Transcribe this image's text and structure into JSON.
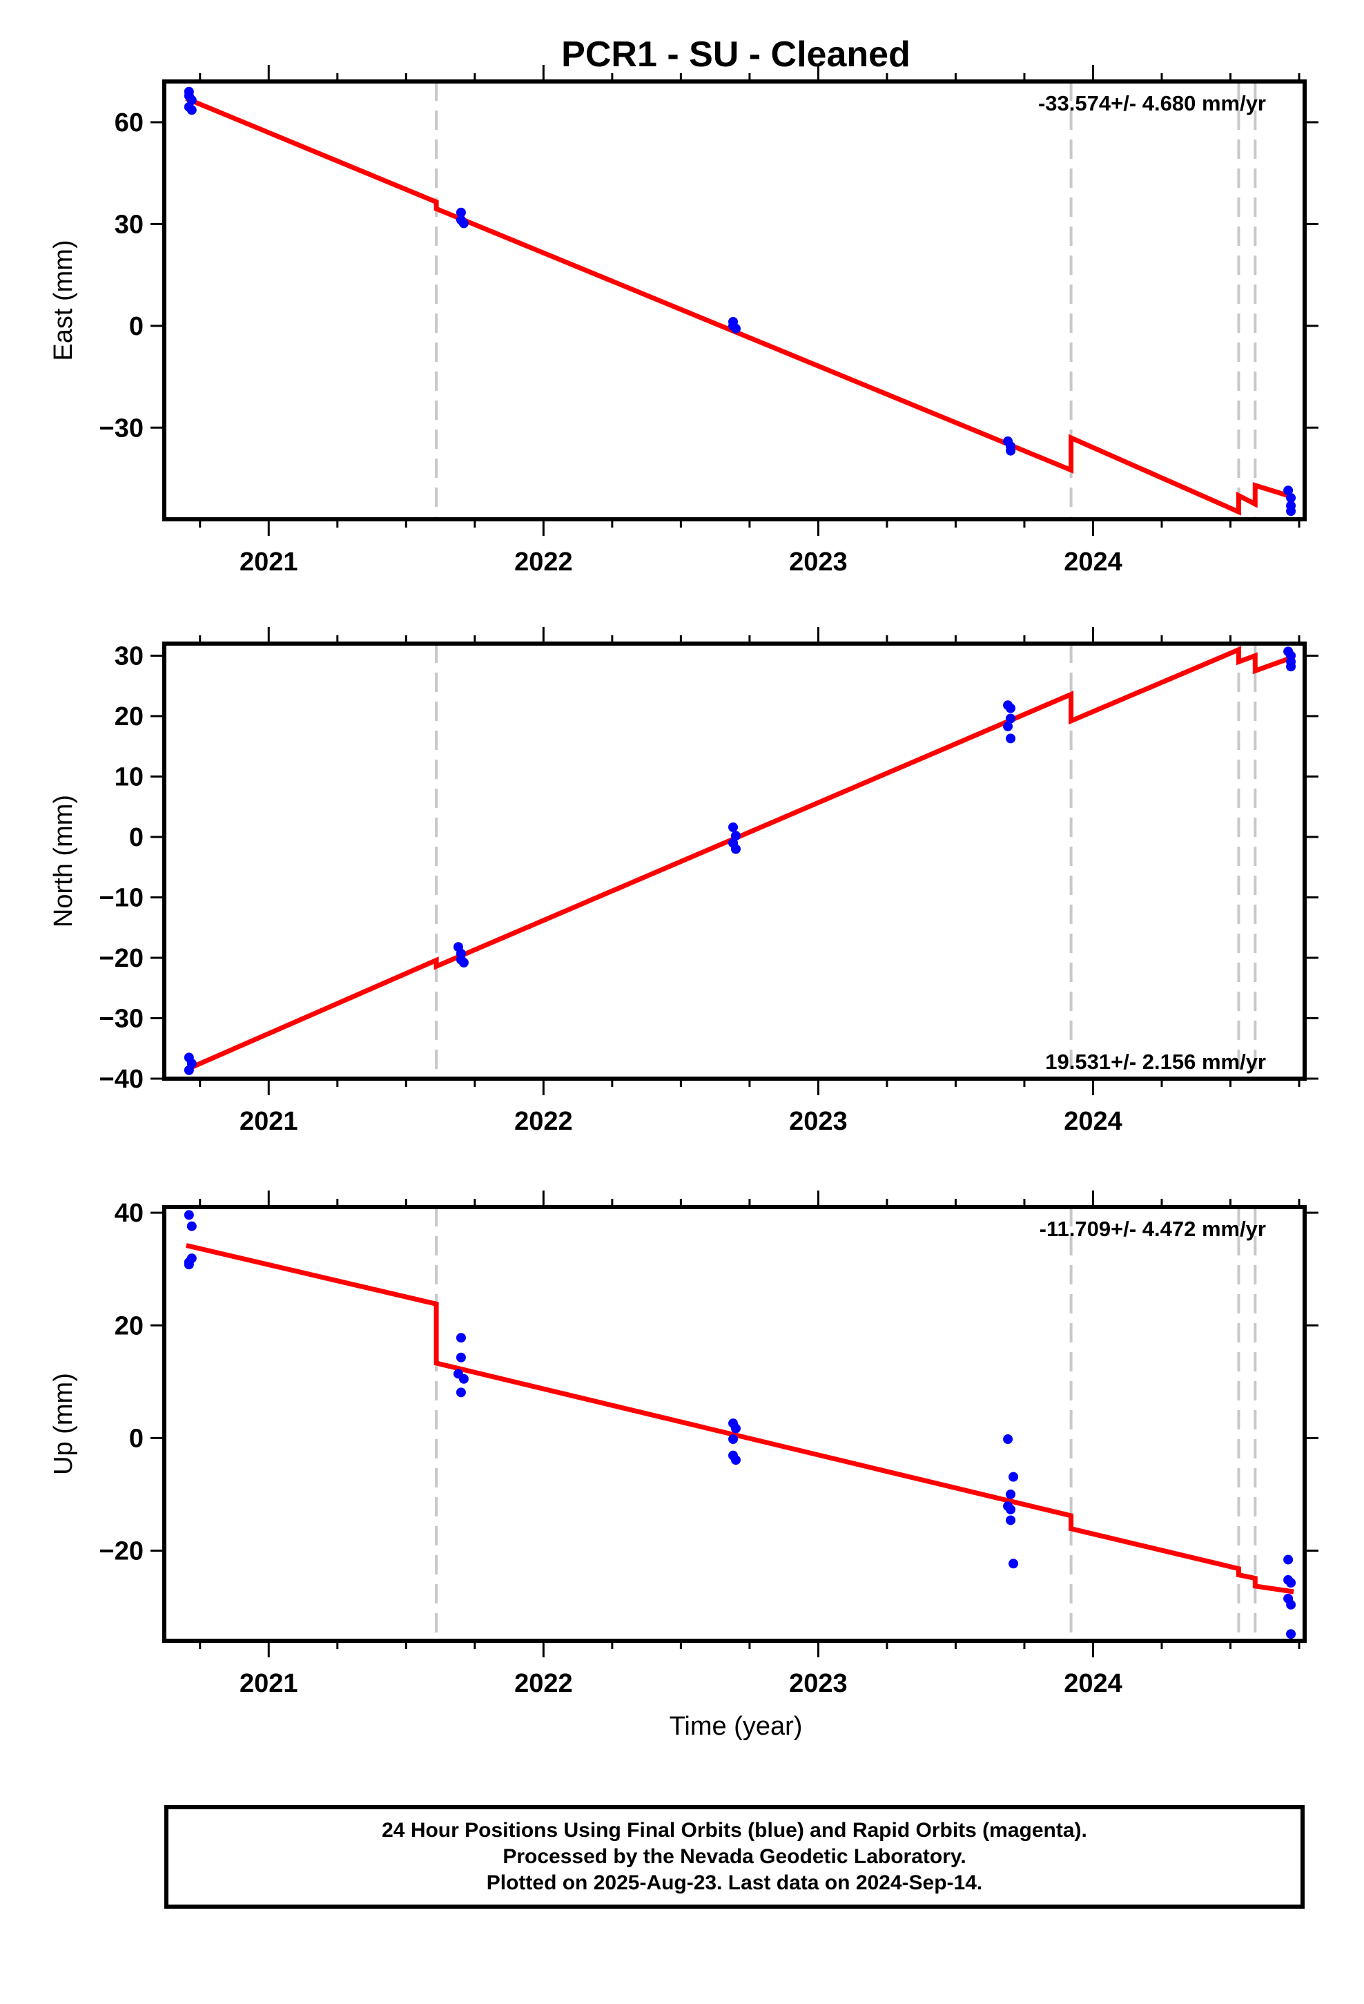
{
  "title": "PCR1  - SU - Cleaned",
  "colors": {
    "final_orbits": "#0000ff",
    "model": "#ff0000",
    "step_lines": "#c8c8c8",
    "frame": "#000000"
  },
  "xlabel": "Time (year)",
  "x_tick_labels": [
    "2021",
    "2022",
    "2023",
    "2024"
  ],
  "chart_data": [
    {
      "type": "scatter",
      "name": "east",
      "ylabel": "East (mm)",
      "rate_label": "-33.574+/- 4.680 mm/yr",
      "rate_position": "top-right",
      "xlim": [
        2020.62,
        2024.77
      ],
      "ylim": [
        -57,
        72
      ],
      "yticks": [
        60,
        30,
        0,
        -30
      ],
      "ytick_labels": [
        "60",
        "30",
        "0",
        "−30"
      ],
      "xticks": [
        2021,
        2022,
        2023,
        2024
      ],
      "grid": false,
      "step_epochs": [
        2021.61,
        2023.92,
        2024.53,
        2024.59
      ],
      "series": [
        {
          "name": "Final Orbits",
          "color": "#0000ff",
          "points": [
            [
              2020.71,
              69.0
            ],
            [
              2020.71,
              67.8
            ],
            [
              2020.72,
              66.5
            ],
            [
              2020.71,
              64.5
            ],
            [
              2020.72,
              63.6
            ],
            [
              2021.7,
              33.4
            ],
            [
              2021.7,
              31.2
            ],
            [
              2021.71,
              30.2
            ],
            [
              2022.69,
              1.2
            ],
            [
              2022.69,
              0.0
            ],
            [
              2022.7,
              -0.8
            ],
            [
              2023.69,
              -34.0
            ],
            [
              2023.7,
              -35.5
            ],
            [
              2023.7,
              -36.8
            ],
            [
              2024.71,
              -48.5
            ],
            [
              2024.72,
              -50.7
            ],
            [
              2024.72,
              -53.0
            ],
            [
              2024.72,
              -54.6
            ]
          ]
        },
        {
          "name": "Model",
          "color": "#ff0000",
          "line": [
            [
              2020.7,
              67.0
            ],
            [
              2021.61,
              36.5
            ],
            [
              2021.61,
              34.5
            ],
            [
              2023.92,
              -42.5
            ],
            [
              2023.92,
              -33.0
            ],
            [
              2024.53,
              -54.8
            ],
            [
              2024.53,
              -50.0
            ],
            [
              2024.59,
              -52.5
            ],
            [
              2024.59,
              -47.0
            ],
            [
              2024.73,
              -50.5
            ]
          ]
        }
      ]
    },
    {
      "type": "scatter",
      "name": "north",
      "ylabel": "North (mm)",
      "rate_label": "19.531+/- 2.156 mm/yr",
      "rate_position": "bottom-right",
      "xlim": [
        2020.62,
        2024.77
      ],
      "ylim": [
        -40,
        32
      ],
      "yticks": [
        30,
        20,
        10,
        0,
        -10,
        -20,
        -30,
        -40
      ],
      "ytick_labels": [
        "30",
        "20",
        "10",
        "0",
        "−10",
        "−20",
        "−30",
        "−40"
      ],
      "xticks": [
        2021,
        2022,
        2023,
        2024
      ],
      "grid": false,
      "step_epochs": [
        2021.61,
        2023.92,
        2024.53,
        2024.59
      ],
      "series": [
        {
          "name": "Final Orbits",
          "color": "#0000ff",
          "points": [
            [
              2020.71,
              -36.5
            ],
            [
              2020.72,
              -37.5
            ],
            [
              2020.71,
              -38.6
            ],
            [
              2021.69,
              -18.2
            ],
            [
              2021.7,
              -19.3
            ],
            [
              2021.7,
              -20.3
            ],
            [
              2021.71,
              -20.8
            ],
            [
              2022.69,
              1.6
            ],
            [
              2022.7,
              0.2
            ],
            [
              2022.69,
              -1.0
            ],
            [
              2022.7,
              -2.0
            ],
            [
              2023.69,
              21.8
            ],
            [
              2023.7,
              21.3
            ],
            [
              2023.7,
              19.6
            ],
            [
              2023.69,
              18.3
            ],
            [
              2023.7,
              16.3
            ],
            [
              2024.71,
              30.7
            ],
            [
              2024.72,
              30.0
            ],
            [
              2024.72,
              29.0
            ],
            [
              2024.72,
              28.2
            ]
          ]
        },
        {
          "name": "Model",
          "color": "#ff0000",
          "line": [
            [
              2020.7,
              -38.5
            ],
            [
              2021.61,
              -20.4
            ],
            [
              2021.61,
              -21.4
            ],
            [
              2023.92,
              23.6
            ],
            [
              2023.92,
              19.2
            ],
            [
              2024.53,
              31.0
            ],
            [
              2024.53,
              29.0
            ],
            [
              2024.59,
              30.0
            ],
            [
              2024.59,
              27.5
            ],
            [
              2024.73,
              29.8
            ]
          ]
        }
      ]
    },
    {
      "type": "scatter",
      "name": "up",
      "ylabel": "Up (mm)",
      "rate_label": "-11.709+/- 4.472 mm/yr",
      "rate_position": "top-right",
      "xlim": [
        2020.62,
        2024.77
      ],
      "ylim": [
        -36,
        41
      ],
      "yticks": [
        40,
        20,
        0,
        -20
      ],
      "ytick_labels": [
        "40",
        "20",
        "0",
        "−20"
      ],
      "xticks": [
        2021,
        2022,
        2023,
        2024
      ],
      "grid": false,
      "step_epochs": [
        2021.61,
        2023.92,
        2024.53,
        2024.59
      ],
      "series": [
        {
          "name": "Final Orbits",
          "color": "#0000ff",
          "points": [
            [
              2020.71,
              39.6
            ],
            [
              2020.72,
              37.6
            ],
            [
              2020.72,
              31.9
            ],
            [
              2020.71,
              31.2
            ],
            [
              2020.71,
              30.8
            ],
            [
              2021.7,
              17.8
            ],
            [
              2021.7,
              14.3
            ],
            [
              2021.69,
              11.4
            ],
            [
              2021.71,
              10.5
            ],
            [
              2021.7,
              8.1
            ],
            [
              2022.69,
              2.6
            ],
            [
              2022.7,
              1.7
            ],
            [
              2022.69,
              -0.2
            ],
            [
              2022.69,
              -3.1
            ],
            [
              2022.7,
              -3.9
            ],
            [
              2023.69,
              -0.2
            ],
            [
              2023.71,
              -6.9
            ],
            [
              2023.7,
              -10.0
            ],
            [
              2023.69,
              -12.1
            ],
            [
              2023.7,
              -12.7
            ],
            [
              2023.7,
              -14.6
            ],
            [
              2023.71,
              -22.3
            ],
            [
              2024.71,
              -21.6
            ],
            [
              2024.71,
              -25.2
            ],
            [
              2024.72,
              -25.7
            ],
            [
              2024.71,
              -28.5
            ],
            [
              2024.72,
              -29.6
            ],
            [
              2024.72,
              -34.8
            ]
          ]
        },
        {
          "name": "Model",
          "color": "#ff0000",
          "line": [
            [
              2020.7,
              34.2
            ],
            [
              2021.61,
              23.8
            ],
            [
              2021.61,
              13.3
            ],
            [
              2023.92,
              -13.8
            ],
            [
              2023.92,
              -16.1
            ],
            [
              2024.53,
              -23.2
            ],
            [
              2024.53,
              -24.3
            ],
            [
              2024.59,
              -24.9
            ],
            [
              2024.59,
              -26.3
            ],
            [
              2024.73,
              -27.3
            ]
          ]
        }
      ]
    }
  ],
  "footer": {
    "line1": "24 Hour Positions Using Final Orbits (blue) and Rapid Orbits (magenta).",
    "line2": "Processed by the Nevada Geodetic Laboratory.",
    "line3": "Plotted on 2025-Aug-23. Last data on 2024-Sep-14."
  }
}
